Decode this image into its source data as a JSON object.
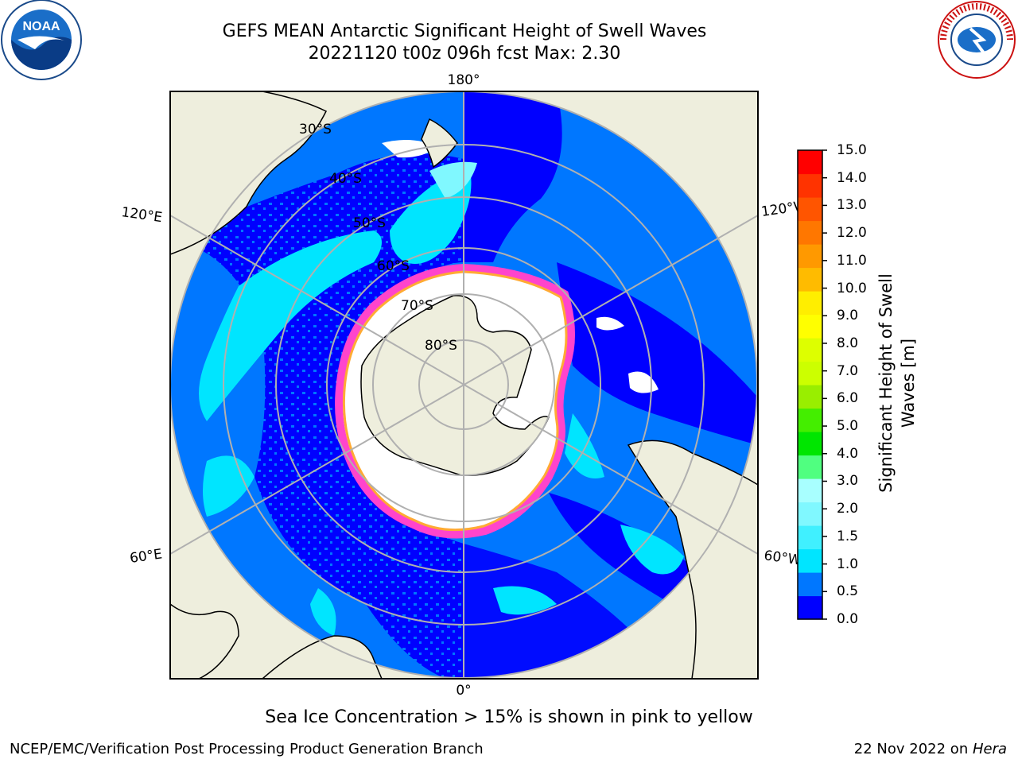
{
  "title_line1": "GEFS MEAN Antarctic Significant Height of Swell Waves",
  "title_line2": "20221120 t00z 096h fcst   Max: 2.30",
  "footer_note": "Sea Ice Concentration > 15% is shown in pink to yellow",
  "credit": "NCEP/EMC/Verification Post Processing Product Generation Branch",
  "date_prefix": "22 Nov 2022 on ",
  "date_machine": "Hera",
  "logos": {
    "noaa_text": "NOAA",
    "nws_text": "NATIONAL WEATHER SERVICE"
  },
  "map": {
    "projection": "south polar stereographic",
    "longitude_labels": {
      "top": "180°",
      "bottom": "0°",
      "upper_left": "120°E",
      "upper_right": "120°W",
      "lower_left": "60°E",
      "lower_right": "60°W"
    },
    "latitude_labels": [
      "30°S",
      "40°S",
      "50°S",
      "60°S",
      "70°S",
      "80°S"
    ],
    "colors": {
      "land": "#eeeedd",
      "ice_edge": "#ff44cc",
      "ice_edge_inner": "#ffaa33",
      "grid": "#b0b0b0"
    }
  },
  "colorbar": {
    "label": "Significant Height of Swell Waves [m]",
    "ticks": [
      "15.0",
      "14.0",
      "13.0",
      "12.0",
      "11.0",
      "10.0",
      "9.0",
      "8.0",
      "7.0",
      "6.0",
      "5.0",
      "4.0",
      "3.0",
      "2.0",
      "1.5",
      "1.0",
      "0.5",
      "0.0"
    ],
    "colors_bottom_to_top": [
      "#0000ff",
      "#0077ff",
      "#00e5ff",
      "#40f0ff",
      "#80f8ff",
      "#a8ffff",
      "#50ff80",
      "#00e600",
      "#44ee00",
      "#99ee00",
      "#ccff00",
      "#ddff00",
      "#ffff00",
      "#ffee00",
      "#ffbb00",
      "#ff9900",
      "#ff7700",
      "#ff5500",
      "#ff3300",
      "#ff0000"
    ]
  }
}
